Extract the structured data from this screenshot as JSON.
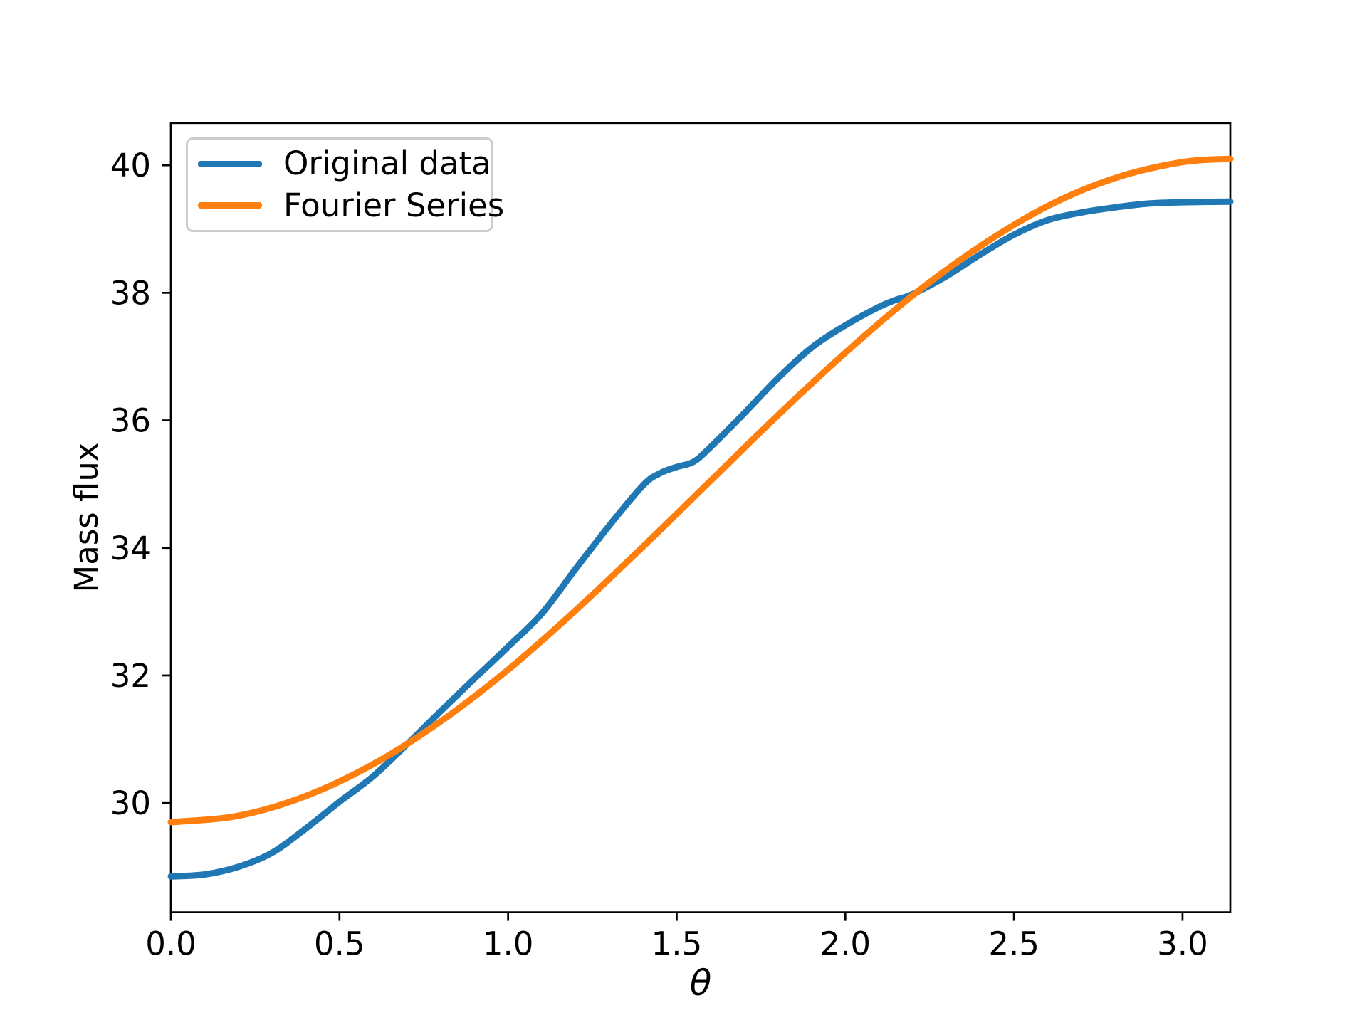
{
  "window": {
    "background": "#ffffff",
    "text_color": "#000000",
    "spine_color": "#000000",
    "legend_border_color": "#cccccc"
  },
  "chart_data": {
    "type": "line",
    "title": "",
    "xlabel": "θ",
    "ylabel": "Mass flux",
    "xlim": [
      0,
      3.14159265
    ],
    "ylim": [
      28.2875,
      40.6625
    ],
    "grid": false,
    "legend_position": "upper left",
    "x_tick_values": [
      0.0,
      0.5,
      1.0,
      1.5,
      2.0,
      2.5,
      3.0
    ],
    "x_tick_labels": [
      "0.0",
      "0.5",
      "1.0",
      "1.5",
      "2.0",
      "2.5",
      "3.0"
    ],
    "y_tick_values": [
      30,
      32,
      34,
      36,
      38,
      40
    ],
    "y_tick_labels": [
      "30",
      "32",
      "34",
      "36",
      "38",
      "40"
    ],
    "series": [
      {
        "name": "Original data",
        "color": "#1f77b4",
        "x": [
          0,
          0.1,
          0.2,
          0.3,
          0.4,
          0.5,
          0.6,
          0.7,
          0.8,
          0.9,
          1.0,
          1.1,
          1.2,
          1.3,
          1.4,
          1.45,
          1.5,
          1.55,
          1.6,
          1.7,
          1.8,
          1.9,
          2.0,
          2.1,
          2.15,
          2.2,
          2.3,
          2.4,
          2.5,
          2.6,
          2.7,
          2.8,
          2.9,
          3.0,
          3.14159
        ],
        "y": [
          28.85,
          28.88,
          29.0,
          29.22,
          29.6,
          30.02,
          30.42,
          30.92,
          31.44,
          31.95,
          32.45,
          32.97,
          33.67,
          34.35,
          34.98,
          35.17,
          35.27,
          35.35,
          35.58,
          36.11,
          36.66,
          37.14,
          37.49,
          37.78,
          37.89,
          37.98,
          38.26,
          38.6,
          38.91,
          39.14,
          39.26,
          39.34,
          39.4,
          39.42,
          39.43
        ]
      },
      {
        "name": "Fourier Series",
        "color": "#ff7f0e",
        "x": [
          0,
          0.2,
          0.4,
          0.6,
          0.8,
          1.0,
          1.2,
          1.4,
          1.6,
          1.8,
          2.0,
          2.2,
          2.4,
          2.6,
          2.8,
          3.0,
          3.14159
        ],
        "y": [
          29.7,
          29.8,
          30.11,
          30.61,
          31.28,
          32.09,
          33.02,
          34.02,
          35.05,
          36.08,
          37.06,
          37.96,
          38.73,
          39.36,
          39.8,
          40.05,
          40.1
        ]
      }
    ]
  }
}
